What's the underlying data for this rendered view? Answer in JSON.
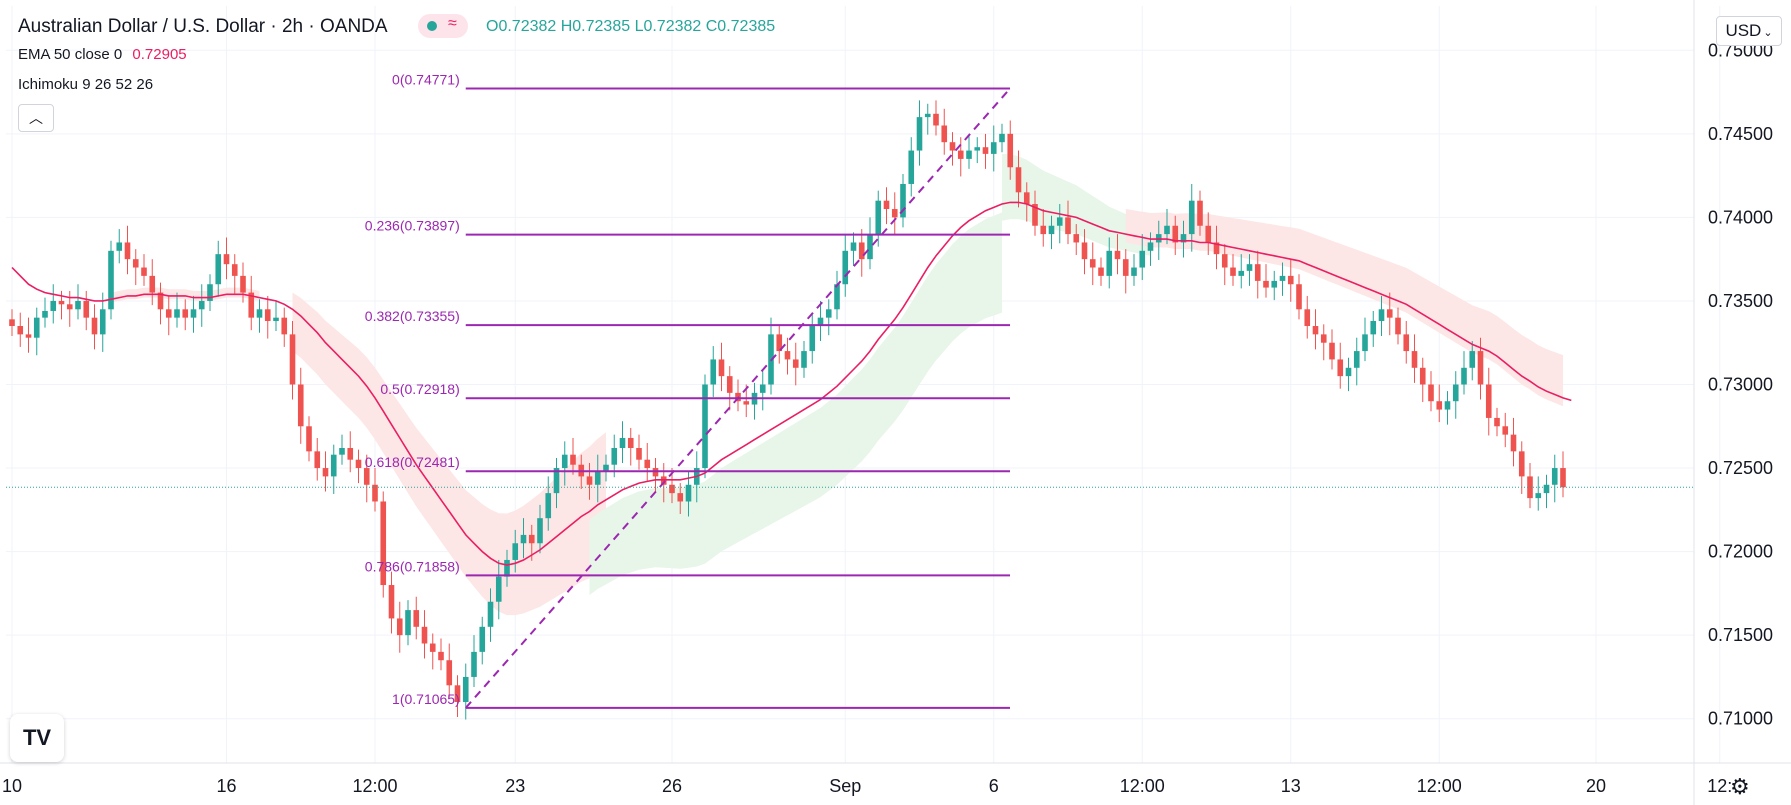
{
  "header": {
    "title": "Australian Dollar / U.S. Dollar · 2h · OANDA",
    "ohlc": "O0.72382 H0.72385 L0.72382 C0.72385",
    "ema_label": "EMA 50 close 0",
    "ema_value": "0.72905",
    "ichimoku_label": "Ichimoku 9 26 52 26",
    "collapse_icon": "chevron-up-icon",
    "badge_icon": "wave-icon"
  },
  "currency_selector": "USD",
  "settings_icon": "gear-icon",
  "logo_icon": "tradingview-logo",
  "colors": {
    "up": "#26a69a",
    "down": "#ef5350",
    "ema": "#e91e63",
    "fib": "#9c27b0",
    "cloud_bull": "#e8f5e9",
    "cloud_bear": "#fde6e6"
  },
  "chart_data": {
    "type": "candlestick",
    "symbol": "AUDUSD",
    "timeframe": "2h",
    "ylim": [
      0.70735,
      0.75265
    ],
    "y_ticks": [
      "0.75000",
      "0.74500",
      "0.74000",
      "0.73500",
      "0.73000",
      "0.72500",
      "0.72000",
      "0.71500",
      "0.71000"
    ],
    "y_tick_values": [
      0.75,
      0.745,
      0.74,
      0.735,
      0.73,
      0.725,
      0.72,
      0.715,
      0.71
    ],
    "x_ticks": [
      "10",
      "16",
      "12:00",
      "23",
      "26",
      "Sep",
      "6",
      "12:00",
      "13",
      "12:00",
      "20",
      "12:"
    ],
    "x_tick_bars": [
      0,
      26,
      44,
      61,
      80,
      101,
      119,
      137,
      155,
      173,
      192,
      207
    ],
    "fibonacci": [
      {
        "label": "0(0.74771)",
        "value": 0.74771
      },
      {
        "label": "0.236(0.73897)",
        "value": 0.73897
      },
      {
        "label": "0.382(0.73355)",
        "value": 0.73355
      },
      {
        "label": "0.5(0.72918)",
        "value": 0.72918
      },
      {
        "label": "0.618(0.72481)",
        "value": 0.72481
      },
      {
        "label": "0.786(0.71858)",
        "value": 0.71858
      },
      {
        "label": "1(0.71065)",
        "value": 0.71065
      }
    ],
    "fib_start_bar": 55,
    "fib_end_bar": 120,
    "last_price": 0.72385,
    "closes": [
      0.7335,
      0.733,
      0.7328,
      0.734,
      0.7344,
      0.735,
      0.7348,
      0.7345,
      0.735,
      0.734,
      0.733,
      0.7345,
      0.738,
      0.7385,
      0.7375,
      0.737,
      0.7365,
      0.7355,
      0.7345,
      0.734,
      0.7345,
      0.734,
      0.7345,
      0.735,
      0.736,
      0.7378,
      0.7372,
      0.7365,
      0.7355,
      0.734,
      0.7345,
      0.7338,
      0.734,
      0.733,
      0.73,
      0.7275,
      0.726,
      0.725,
      0.7245,
      0.7258,
      0.7262,
      0.7255,
      0.725,
      0.724,
      0.723,
      0.718,
      0.716,
      0.715,
      0.7165,
      0.7155,
      0.7145,
      0.714,
      0.7135,
      0.712,
      0.711,
      0.7125,
      0.714,
      0.7155,
      0.717,
      0.7185,
      0.7195,
      0.7205,
      0.721,
      0.7205,
      0.722,
      0.7235,
      0.725,
      0.7258,
      0.7252,
      0.7245,
      0.724,
      0.7248,
      0.7252,
      0.7262,
      0.7268,
      0.7262,
      0.7255,
      0.725,
      0.7245,
      0.724,
      0.7235,
      0.723,
      0.724,
      0.725,
      0.73,
      0.7315,
      0.7305,
      0.7295,
      0.729,
      0.7288,
      0.7295,
      0.73,
      0.733,
      0.732,
      0.7315,
      0.731,
      0.732,
      0.7335,
      0.734,
      0.7345,
      0.736,
      0.738,
      0.7385,
      0.7375,
      0.739,
      0.741,
      0.7405,
      0.74,
      0.742,
      0.744,
      0.746,
      0.7462,
      0.7455,
      0.7445,
      0.744,
      0.7435,
      0.744,
      0.7442,
      0.7438,
      0.7445,
      0.745,
      0.743,
      0.7415,
      0.7408,
      0.7395,
      0.739,
      0.7395,
      0.74,
      0.739,
      0.7385,
      0.7375,
      0.737,
      0.7365,
      0.738,
      0.7375,
      0.7365,
      0.737,
      0.738,
      0.7385,
      0.739,
      0.7395,
      0.7385,
      0.739,
      0.741,
      0.7395,
      0.7385,
      0.7378,
      0.737,
      0.7365,
      0.7368,
      0.7372,
      0.7362,
      0.7358,
      0.7362,
      0.7365,
      0.736,
      0.7345,
      0.7335,
      0.733,
      0.7325,
      0.7315,
      0.7305,
      0.731,
      0.732,
      0.733,
      0.7338,
      0.7345,
      0.734,
      0.733,
      0.732,
      0.731,
      0.73,
      0.729,
      0.7285,
      0.729,
      0.73,
      0.731,
      0.732,
      0.73,
      0.728,
      0.7275,
      0.727,
      0.726,
      0.7245,
      0.7232,
      0.7235,
      0.724,
      0.725,
      0.72385
    ],
    "opens": null,
    "ema50": [
      0.737,
      0.7365,
      0.736,
      0.7357,
      0.7355,
      0.7354,
      0.7353,
      0.7352,
      0.7352,
      0.7351,
      0.735,
      0.735,
      0.7351,
      0.7352,
      0.7353,
      0.7353,
      0.7354,
      0.7354,
      0.7354,
      0.7353,
      0.7353,
      0.7353,
      0.7352,
      0.7352,
      0.7352,
      0.7353,
      0.7354,
      0.7354,
      0.7354,
      0.7353,
      0.7352,
      0.7351,
      0.735,
      0.7348,
      0.7345,
      0.7341,
      0.7336,
      0.7331,
      0.7325,
      0.732,
      0.7315,
      0.731,
      0.7305,
      0.7299,
      0.7292,
      0.7284,
      0.7276,
      0.7268,
      0.726,
      0.7252,
      0.7245,
      0.7238,
      0.7231,
      0.7224,
      0.7217,
      0.721,
      0.7205,
      0.72,
      0.7196,
      0.7193,
      0.7192,
      0.7193,
      0.7195,
      0.7198,
      0.7201,
      0.7205,
      0.7209,
      0.7213,
      0.7217,
      0.7221,
      0.7224,
      0.7228,
      0.7231,
      0.7234,
      0.7237,
      0.7239,
      0.7241,
      0.7242,
      0.7243,
      0.7243,
      0.7243,
      0.7243,
      0.7244,
      0.7245,
      0.7247,
      0.7251,
      0.7255,
      0.7258,
      0.7261,
      0.7264,
      0.7267,
      0.727,
      0.7273,
      0.7276,
      0.7279,
      0.7282,
      0.7285,
      0.7288,
      0.7291,
      0.7295,
      0.7299,
      0.7304,
      0.7309,
      0.7314,
      0.732,
      0.7327,
      0.7333,
      0.7339,
      0.7346,
      0.7354,
      0.7362,
      0.737,
      0.7377,
      0.7383,
      0.7389,
      0.7394,
      0.7398,
      0.7401,
      0.7404,
      0.7406,
      0.7408,
      0.7409,
      0.7409,
      0.7408,
      0.7406,
      0.7404,
      0.7403,
      0.7402,
      0.7401,
      0.74,
      0.7398,
      0.7396,
      0.7394,
      0.7392,
      0.7391,
      0.739,
      0.7389,
      0.7388,
      0.7387,
      0.7387,
      0.7387,
      0.7386,
      0.7386,
      0.7386,
      0.7385,
      0.7385,
      0.7384,
      0.7383,
      0.7382,
      0.7381,
      0.738,
      0.7379,
      0.7378,
      0.7377,
      0.7376,
      0.7375,
      0.7374,
      0.7372,
      0.737,
      0.7368,
      0.7366,
      0.7364,
      0.7362,
      0.736,
      0.7358,
      0.7356,
      0.7354,
      0.7352,
      0.735,
      0.7348,
      0.7345,
      0.7342,
      0.7339,
      0.7336,
      0.7333,
      0.733,
      0.7327,
      0.7324,
      0.7322,
      0.732,
      0.7317,
      0.7313,
      0.7309,
      0.7305,
      0.7302,
      0.72985,
      0.7296,
      0.7294,
      0.7292,
      0.72905
    ],
    "cloud_top": [
      null,
      null,
      null,
      null,
      null,
      null,
      null,
      null,
      null,
      null,
      null,
      null,
      null,
      null,
      null,
      null,
      null,
      null,
      null,
      null,
      null,
      null,
      null,
      null,
      null,
      null,
      null,
      null,
      null,
      null,
      null,
      null,
      null,
      null,
      null,
      null,
      null,
      null,
      null,
      null,
      null,
      null,
      null,
      null,
      null,
      null,
      null,
      null,
      null,
      null,
      null,
      null,
      null,
      null,
      null,
      null,
      null,
      null,
      null,
      null,
      null,
      null,
      null,
      null,
      null,
      null,
      null,
      null,
      null,
      null,
      null,
      null,
      null,
      null,
      null,
      null,
      null,
      null,
      null,
      null,
      null,
      null,
      null,
      null,
      null,
      null,
      null,
      null,
      null,
      null,
      null,
      null,
      null,
      null,
      null,
      null,
      null,
      null,
      null,
      null,
      null,
      null,
      null,
      null,
      null,
      null,
      null,
      null,
      null,
      null,
      null,
      null,
      null,
      null,
      null,
      null,
      null,
      null,
      null,
      null,
      null,
      null,
      null,
      null,
      null,
      null,
      null,
      null,
      null,
      null,
      null,
      null,
      null,
      null,
      null,
      null,
      null,
      null,
      null,
      null,
      null,
      null,
      null,
      null,
      null,
      null,
      null,
      null,
      null,
      null,
      null,
      null,
      null,
      null,
      null,
      null,
      null,
      null,
      null,
      null,
      null,
      null,
      null,
      null,
      null,
      null,
      null,
      null,
      null,
      null,
      null,
      null,
      null,
      null,
      null,
      null,
      null,
      null,
      null,
      null,
      null,
      null,
      null,
      null,
      null,
      null,
      null,
      null,
      null,
      null,
      null,
      null,
      null,
      null,
      null,
      null,
      null
    ]
  }
}
